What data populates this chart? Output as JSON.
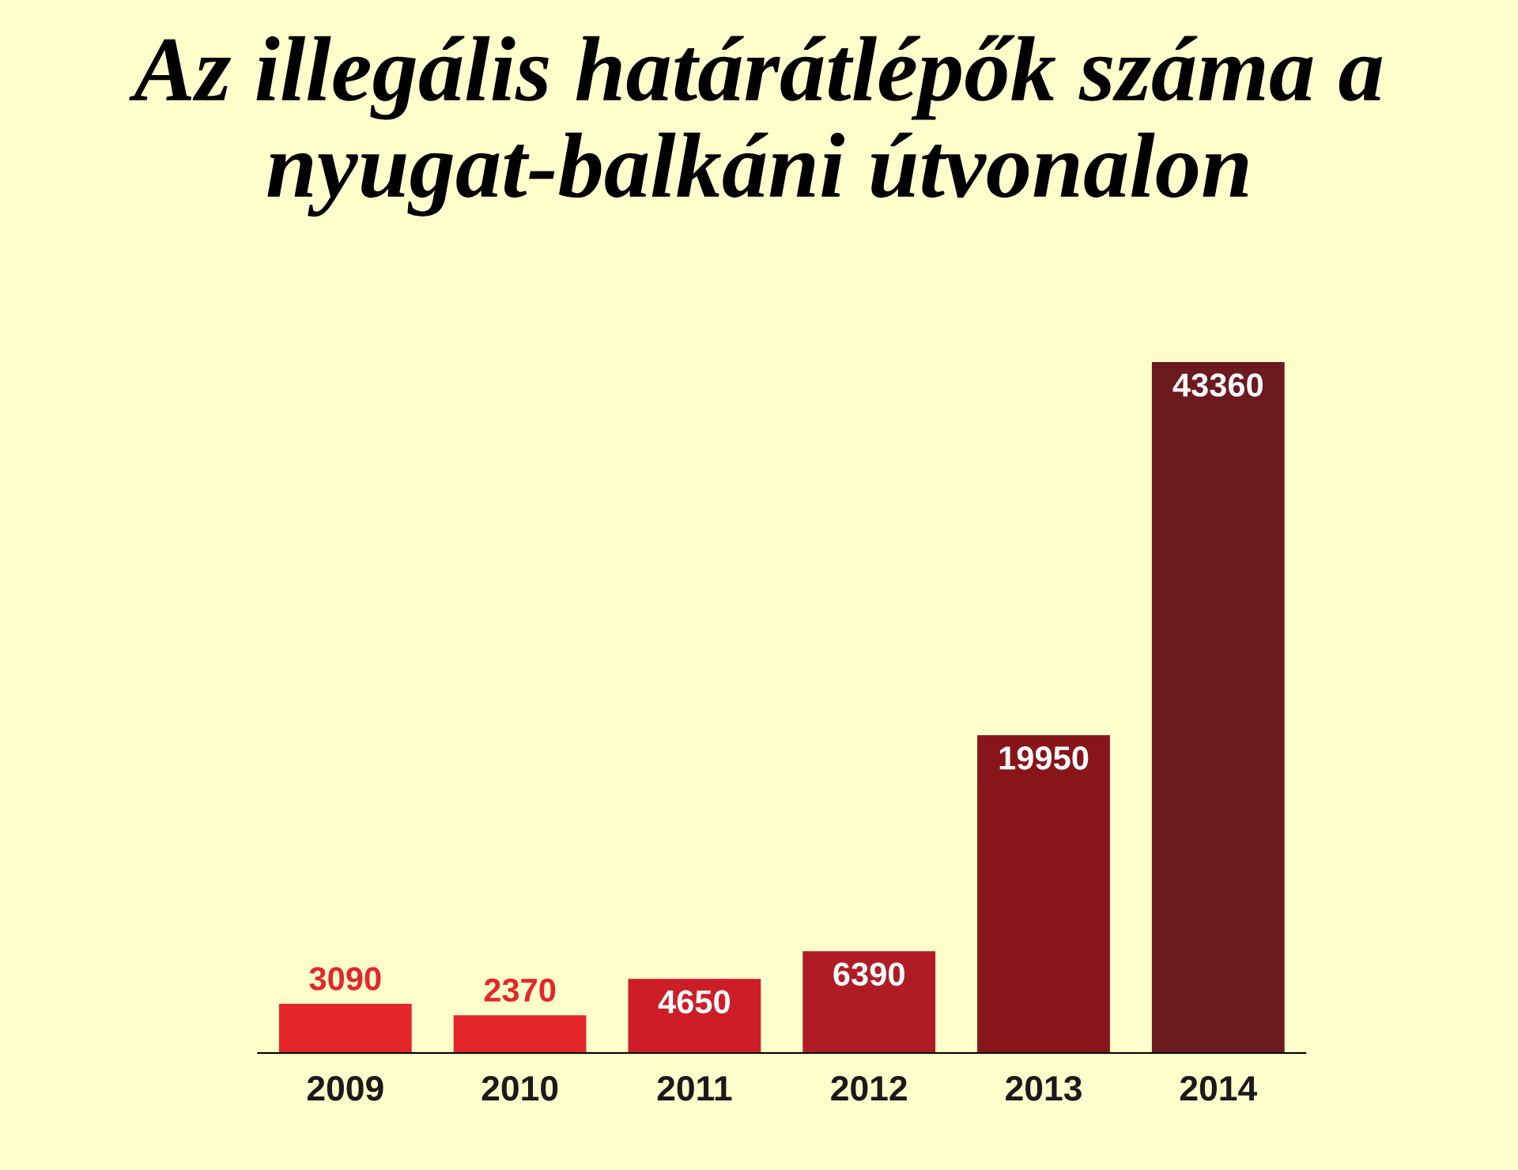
{
  "chart_data": {
    "type": "bar",
    "title": "Az illegális határátlépők száma a nyugat-balkáni útvonalon",
    "categories": [
      "2009",
      "2010",
      "2011",
      "2012",
      "2013",
      "2014"
    ],
    "values": [
      3090,
      2370,
      4650,
      6390,
      19950,
      43360
    ],
    "colors": [
      "#e5262b",
      "#e5262b",
      "#cd1d27",
      "#b01c25",
      "#881519",
      "#6c1a1e"
    ],
    "data_labels": true,
    "grid": false,
    "legend": false
  }
}
